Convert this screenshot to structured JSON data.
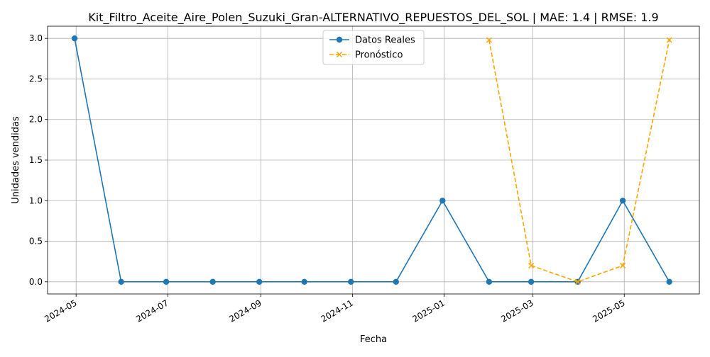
{
  "chart_data": {
    "type": "line",
    "title": "Kit_Filtro_Aceite_Aire_Polen_Suzuki_Gran-ALTERNATIVO_REPUESTOS_DEL_SOL | MAE: 1.4 | RMSE: 1.9",
    "xlabel": "Fecha",
    "ylabel": "Unidades vendidas",
    "xlim": [
      "2024-04-12",
      "2025-06-20"
    ],
    "ylim": [
      -0.15,
      3.15
    ],
    "x_ticks": [
      "2024-05",
      "2024-07",
      "2024-09",
      "2024-11",
      "2025-01",
      "2025-03",
      "2025-05"
    ],
    "y_ticks": [
      "0.0",
      "0.5",
      "1.0",
      "1.5",
      "2.0",
      "2.5",
      "3.0"
    ],
    "grid": true,
    "legend_position": "upper center",
    "series": [
      {
        "name": "Datos Reales",
        "color": "#1f77b4",
        "style": "solid",
        "marker": "circle",
        "x": [
          "2024-04-30",
          "2024-05-31",
          "2024-06-30",
          "2024-07-31",
          "2024-08-31",
          "2024-09-30",
          "2024-10-31",
          "2024-11-30",
          "2024-12-31",
          "2025-01-31",
          "2025-02-28",
          "2025-03-31",
          "2025-04-30",
          "2025-05-31"
        ],
        "values": [
          3,
          0,
          0,
          0,
          0,
          0,
          0,
          0,
          1,
          0,
          0,
          0,
          1,
          0
        ]
      },
      {
        "name": "Pronóstico",
        "color": "#ffa500",
        "style": "dashed",
        "marker": "x",
        "x": [
          "2025-01-31",
          "2025-02-28",
          "2025-03-31",
          "2025-04-30",
          "2025-05-31"
        ],
        "values": [
          2.98,
          0.2,
          0.0,
          0.2,
          2.98
        ]
      }
    ]
  }
}
